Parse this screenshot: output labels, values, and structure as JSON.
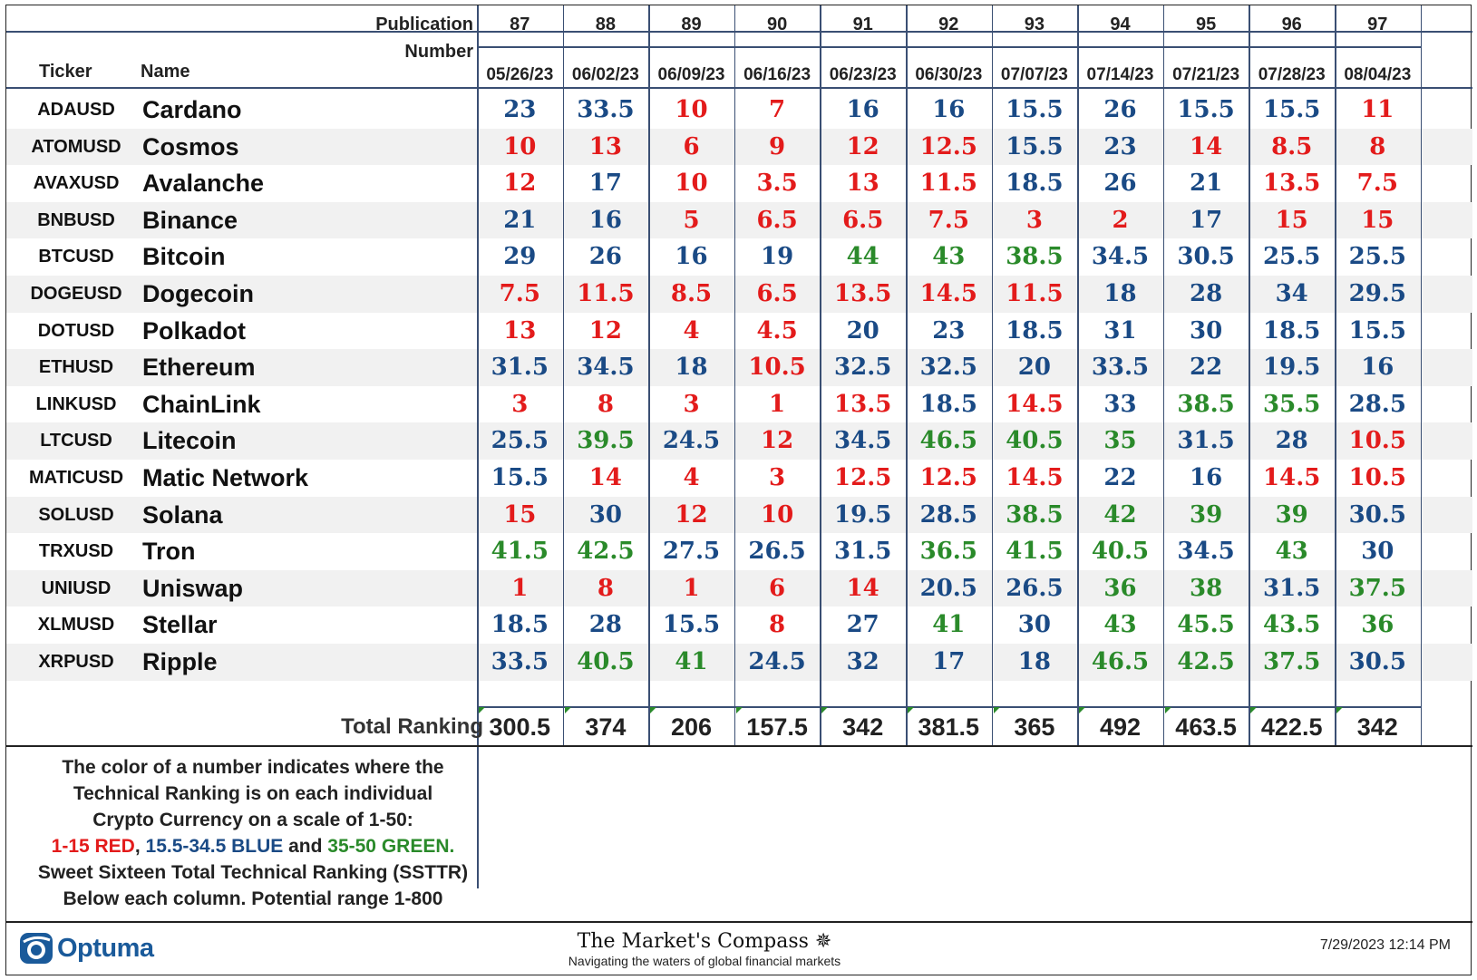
{
  "header": {
    "publication_label": "Publication Number",
    "ticker_label": "Ticker",
    "name_label": "Name",
    "columns": [
      {
        "pub": "87",
        "date": "05/26/23"
      },
      {
        "pub": "88",
        "date": "06/02/23"
      },
      {
        "pub": "89",
        "date": "06/09/23"
      },
      {
        "pub": "90",
        "date": "06/16/23"
      },
      {
        "pub": "91",
        "date": "06/23/23"
      },
      {
        "pub": "92",
        "date": "06/30/23"
      },
      {
        "pub": "93",
        "date": "07/07/23"
      },
      {
        "pub": "94",
        "date": "07/14/23"
      },
      {
        "pub": "95",
        "date": "07/21/23"
      },
      {
        "pub": "96",
        "date": "07/28/23"
      },
      {
        "pub": "97",
        "date": "08/04/23"
      }
    ]
  },
  "rows": [
    {
      "ticker": "ADAUSD",
      "name": "Cardano",
      "values": [
        "23",
        "33.5",
        "10",
        "7",
        "16",
        "16",
        "15.5",
        "26",
        "15.5",
        "15.5",
        "11"
      ]
    },
    {
      "ticker": "ATOMUSD",
      "name": "Cosmos",
      "values": [
        "10",
        "13",
        "6",
        "9",
        "12",
        "12.5",
        "15.5",
        "23",
        "14",
        "8.5",
        "8"
      ]
    },
    {
      "ticker": "AVAXUSD",
      "name": "Avalanche",
      "values": [
        "12",
        "17",
        "10",
        "3.5",
        "13",
        "11.5",
        "18.5",
        "26",
        "21",
        "13.5",
        "7.5"
      ]
    },
    {
      "ticker": "BNBUSD",
      "name": "Binance",
      "values": [
        "21",
        "16",
        "5",
        "6.5",
        "6.5",
        "7.5",
        "3",
        "2",
        "17",
        "15",
        "15"
      ]
    },
    {
      "ticker": "BTCUSD",
      "name": "Bitcoin",
      "values": [
        "29",
        "26",
        "16",
        "19",
        "44",
        "43",
        "38.5",
        "34.5",
        "30.5",
        "25.5",
        "25.5"
      ]
    },
    {
      "ticker": "DOGEUSD",
      "name": "Dogecoin",
      "values": [
        "7.5",
        "11.5",
        "8.5",
        "6.5",
        "13.5",
        "14.5",
        "11.5",
        "18",
        "28",
        "34",
        "29.5"
      ]
    },
    {
      "ticker": "DOTUSD",
      "name": "Polkadot",
      "values": [
        "13",
        "12",
        "4",
        "4.5",
        "20",
        "23",
        "18.5",
        "31",
        "30",
        "18.5",
        "15.5"
      ]
    },
    {
      "ticker": "ETHUSD",
      "name": "Ethereum",
      "values": [
        "31.5",
        "34.5",
        "18",
        "10.5",
        "32.5",
        "32.5",
        "20",
        "33.5",
        "22",
        "19.5",
        "16"
      ]
    },
    {
      "ticker": "LINKUSD",
      "name": "ChainLink",
      "values": [
        "3",
        "8",
        "3",
        "1",
        "13.5",
        "18.5",
        "14.5",
        "33",
        "38.5",
        "35.5",
        "28.5"
      ]
    },
    {
      "ticker": "LTCUSD",
      "name": "Litecoin",
      "values": [
        "25.5",
        "39.5",
        "24.5",
        "12",
        "34.5",
        "46.5",
        "40.5",
        "35",
        "31.5",
        "28",
        "10.5"
      ]
    },
    {
      "ticker": "MATICUSD",
      "name": "Matic Network",
      "values": [
        "15.5",
        "14",
        "4",
        "3",
        "12.5",
        "12.5",
        "14.5",
        "22",
        "16",
        "14.5",
        "10.5"
      ]
    },
    {
      "ticker": "SOLUSD",
      "name": "Solana",
      "values": [
        "15",
        "30",
        "12",
        "10",
        "19.5",
        "28.5",
        "38.5",
        "42",
        "39",
        "39",
        "30.5"
      ]
    },
    {
      "ticker": "TRXUSD",
      "name": "Tron",
      "values": [
        "41.5",
        "42.5",
        "27.5",
        "26.5",
        "31.5",
        "36.5",
        "41.5",
        "40.5",
        "34.5",
        "43",
        "30"
      ]
    },
    {
      "ticker": "UNIUSD",
      "name": "Uniswap",
      "values": [
        "1",
        "8",
        "1",
        "6",
        "14",
        "20.5",
        "26.5",
        "36",
        "38",
        "31.5",
        "37.5"
      ]
    },
    {
      "ticker": "XLMUSD",
      "name": "Stellar",
      "values": [
        "18.5",
        "28",
        "15.5",
        "8",
        "27",
        "41",
        "30",
        "43",
        "45.5",
        "43.5",
        "36"
      ]
    },
    {
      "ticker": "XRPUSD",
      "name": "Ripple",
      "values": [
        "33.5",
        "40.5",
        "41",
        "24.5",
        "32",
        "17",
        "18",
        "46.5",
        "42.5",
        "37.5",
        "30.5"
      ]
    }
  ],
  "totals": {
    "label": "Total Ranking",
    "values": [
      "300.5",
      "374",
      "206",
      "157.5",
      "342",
      "381.5",
      "365",
      "492",
      "463.5",
      "422.5",
      "342"
    ]
  },
  "colors": {
    "red": "#e31b1b",
    "blue": "#1a4a85",
    "green": "#2a8a2a"
  },
  "note": {
    "line1": "The color of a number indicates where the",
    "line2": "Technical Ranking is on each individual",
    "line3": "Crypto Currency on a scale of 1-50:",
    "red_range": "1-15 RED",
    "sep1": ", ",
    "blue_range": "15.5-34.5 BLUE",
    "and": " and ",
    "green_range": "35-50 GREEN",
    "period": ".",
    "line5": "Sweet Sixteen Total Technical Ranking (SSTTR)",
    "line6": "Below each column.   Potential range 1-800"
  },
  "footer": {
    "optuma": "Optuma",
    "title": "The Market's Compass",
    "subtitle": "Navigating the waters of global financial markets",
    "timestamp": "7/29/2023 12:14 PM"
  }
}
